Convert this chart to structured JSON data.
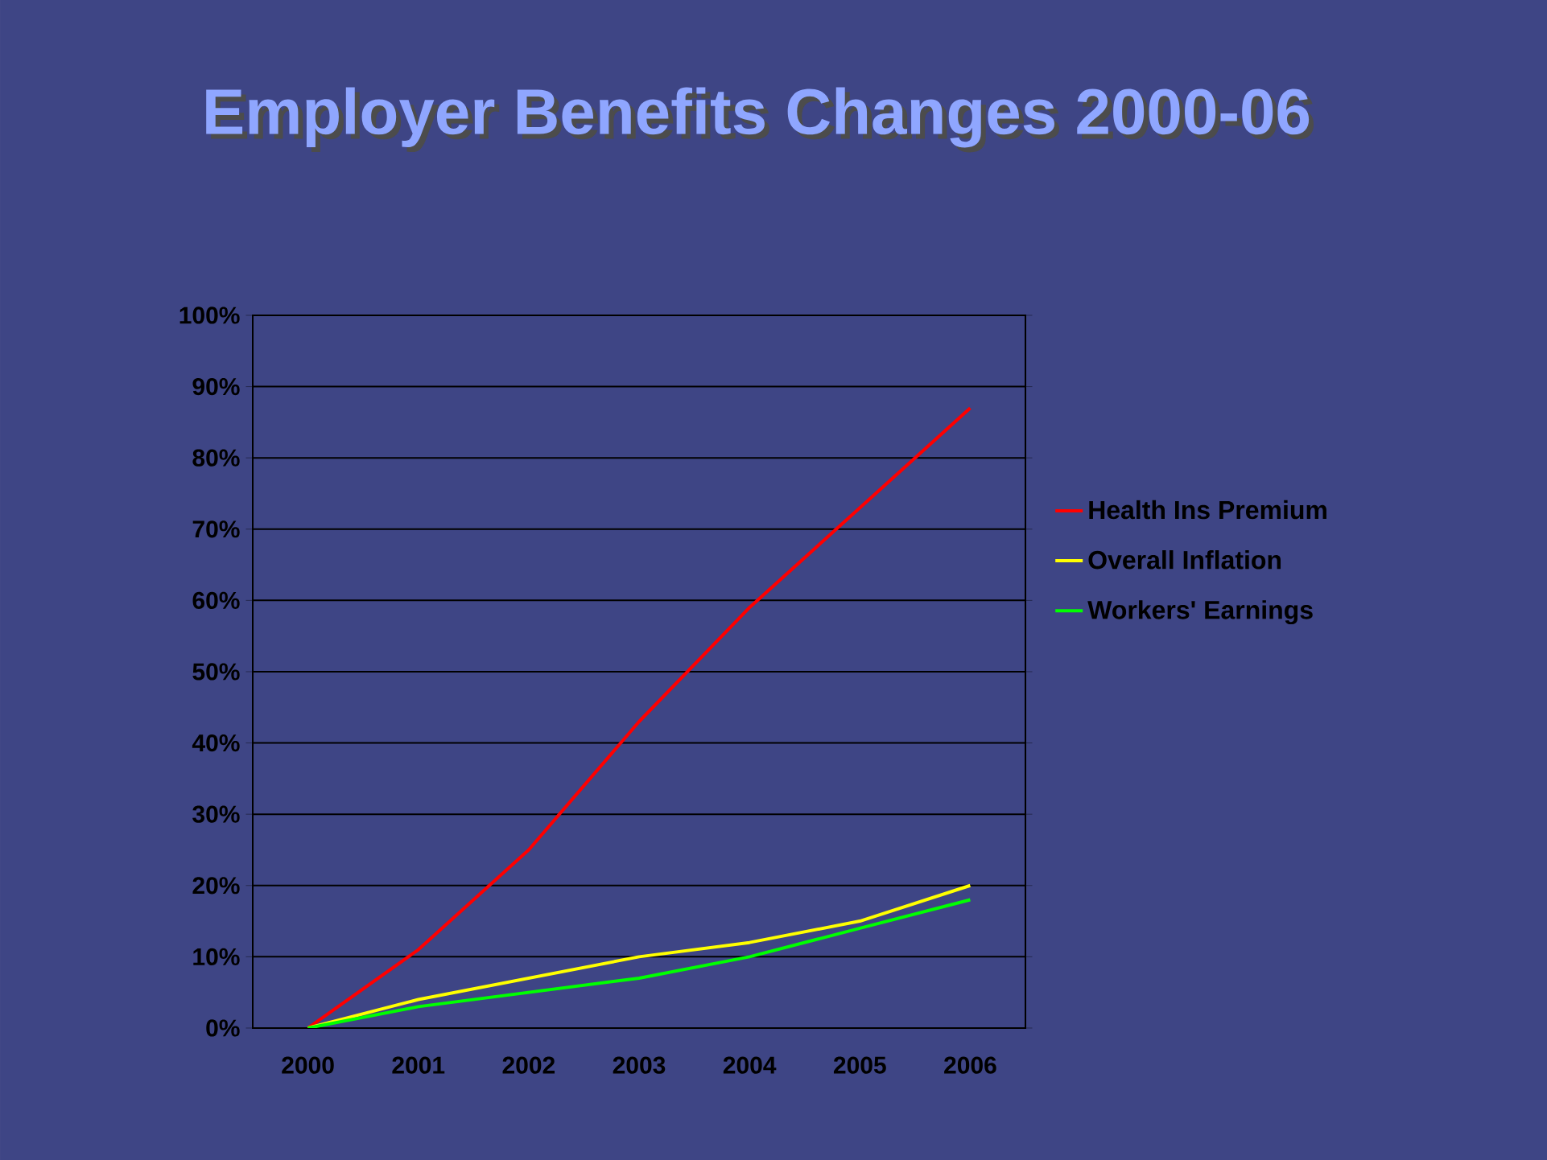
{
  "chart_data": {
    "type": "line",
    "title": "Employer Benefits Changes 2000-06",
    "categories": [
      "2000",
      "2001",
      "2002",
      "2003",
      "2004",
      "2005",
      "2006"
    ],
    "series": [
      {
        "name": "Health Ins Premium",
        "color": "#ff0000",
        "values": [
          0,
          11,
          25,
          43,
          59,
          73,
          87
        ]
      },
      {
        "name": "Overall Inflation",
        "color": "#ffff00",
        "values": [
          0,
          4,
          7,
          10,
          12,
          15,
          20
        ]
      },
      {
        "name": "Workers' Earnings",
        "color": "#00ff00",
        "values": [
          0,
          3,
          5,
          7,
          10,
          14,
          18
        ]
      }
    ],
    "ylim": [
      0,
      100
    ],
    "yticks": [
      {
        "value": 0,
        "label": "0%"
      },
      {
        "value": 10,
        "label": "10%"
      },
      {
        "value": 20,
        "label": "20%"
      },
      {
        "value": 30,
        "label": "30%"
      },
      {
        "value": 40,
        "label": "40%"
      },
      {
        "value": 50,
        "label": "50%"
      },
      {
        "value": 60,
        "label": "60%"
      },
      {
        "value": 70,
        "label": "70%"
      },
      {
        "value": 80,
        "label": "80%"
      },
      {
        "value": 90,
        "label": "90%"
      },
      {
        "value": 100,
        "label": "100%"
      }
    ],
    "grid": "y",
    "legend": "right",
    "marker": "none",
    "line_style": "solid"
  }
}
